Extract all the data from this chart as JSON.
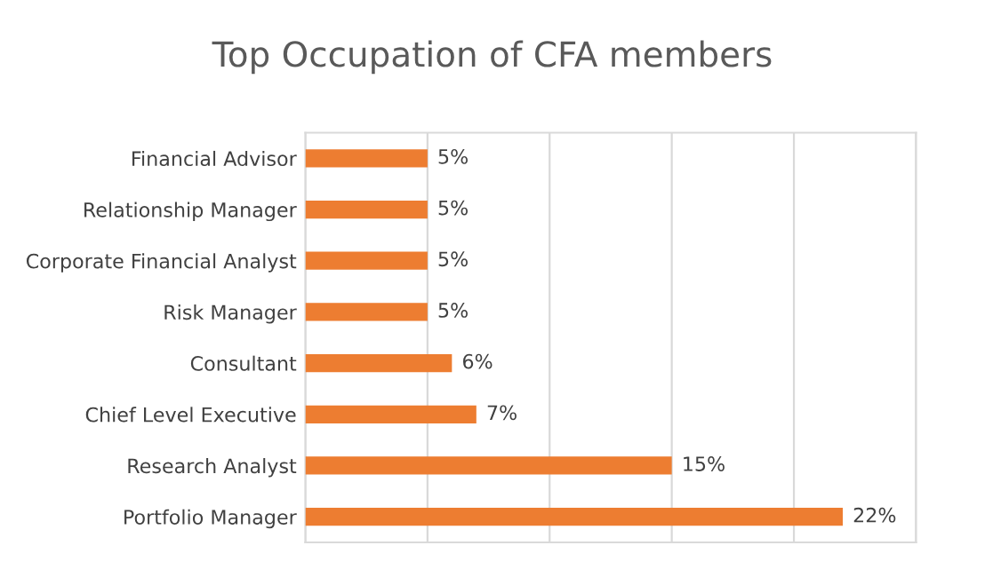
{
  "chart_data": {
    "type": "bar",
    "orientation": "horizontal",
    "title": "Top Occupation of CFA members",
    "categories": [
      "Financial Advisor",
      "Relationship Manager",
      "Corporate Financial Analyst",
      "Risk Manager",
      "Consultant",
      "Chief Level Executive",
      "Research Analyst",
      "Portfolio Manager"
    ],
    "values": [
      5,
      5,
      5,
      5,
      6,
      7,
      15,
      22
    ],
    "value_labels": [
      "5%",
      "5%",
      "5%",
      "5%",
      "6%",
      "7%",
      "15%",
      "22%"
    ],
    "color": "#ed7d31",
    "xlim": [
      0,
      25
    ],
    "xticks": [
      {
        "value": 0,
        "label": null
      },
      {
        "value": 5,
        "label": null
      },
      {
        "value": 10,
        "label": null
      },
      {
        "value": 15,
        "label": null
      },
      {
        "value": 20,
        "label": null
      },
      {
        "value": 25,
        "label": null
      }
    ],
    "grid": "x",
    "tick_labels": "y",
    "legend": false
  }
}
